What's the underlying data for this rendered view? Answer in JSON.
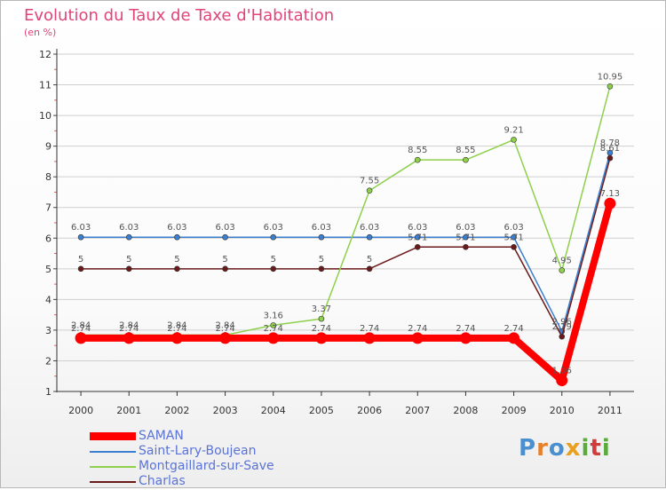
{
  "header": {
    "title": "Evolution du Taux de Taxe d'Habitation",
    "subtitle": "(en %)"
  },
  "logo": {
    "text": "Proxiti",
    "letter_colors": [
      "#4a8fd0",
      "#e8802a",
      "#4a8fd0",
      "#e8a020",
      "#5aaa3c",
      "#d03c3c",
      "#5aaa3c"
    ]
  },
  "chart_data": {
    "type": "line",
    "title": "Evolution du Taux de Taxe d'Habitation",
    "subtitle": "(en %)",
    "x": [
      "2000",
      "2001",
      "2002",
      "2003",
      "2004",
      "2005",
      "2006",
      "2007",
      "2008",
      "2009",
      "2010",
      "2011"
    ],
    "y_ticks": [
      "1",
      "2",
      "3",
      "4",
      "5",
      "6",
      "7",
      "8",
      "9",
      "10",
      "11",
      "12"
    ],
    "ylim": [
      1,
      12
    ],
    "grid": "horizontal",
    "legend_position": "bottom-left",
    "series": [
      {
        "name": "SAMAN",
        "color": "#ff0000",
        "values": [
          2.74,
          2.74,
          2.74,
          2.74,
          2.74,
          2.74,
          2.74,
          2.74,
          2.74,
          2.74,
          1.36,
          7.13
        ],
        "labels": [
          "2.74",
          "2.74",
          "2.74",
          "2.74",
          "2.74",
          "2.74",
          "2.74",
          "2.74",
          "2.74",
          "2.74",
          "1.36",
          "7.13"
        ]
      },
      {
        "name": "Saint-Lary-Boujean",
        "color": "#3b7fd1",
        "values": [
          6.03,
          6.03,
          6.03,
          6.03,
          6.03,
          6.03,
          6.03,
          6.03,
          6.03,
          6.03,
          2.96,
          8.78
        ],
        "labels": [
          "6.03",
          "6.03",
          "6.03",
          "6.03",
          "6.03",
          "6.03",
          "6.03",
          "6.03",
          "6.03",
          "6.03",
          "2.96",
          "8.78"
        ]
      },
      {
        "name": "Montgaillard-sur-Save",
        "color": "#8ed04a",
        "values": [
          2.84,
          2.84,
          2.84,
          2.84,
          3.16,
          3.37,
          7.55,
          8.55,
          8.55,
          9.21,
          4.95,
          10.95
        ],
        "labels": [
          "2.84",
          "2.84",
          "2.84",
          "2.84",
          "3.16",
          "3.37",
          "7.55",
          "8.55",
          "8.55",
          "9.21",
          "4.95",
          "10.95"
        ]
      },
      {
        "name": "Charlas",
        "color": "#6a1a1a",
        "values": [
          5,
          5,
          5,
          5,
          5,
          5,
          5,
          5.71,
          5.71,
          5.71,
          2.79,
          8.61
        ],
        "labels": [
          "5",
          "5",
          "5",
          "5",
          "5",
          "5",
          "5",
          "5.71",
          "5.71",
          "5.71",
          "2.79",
          "8.61"
        ]
      }
    ]
  }
}
